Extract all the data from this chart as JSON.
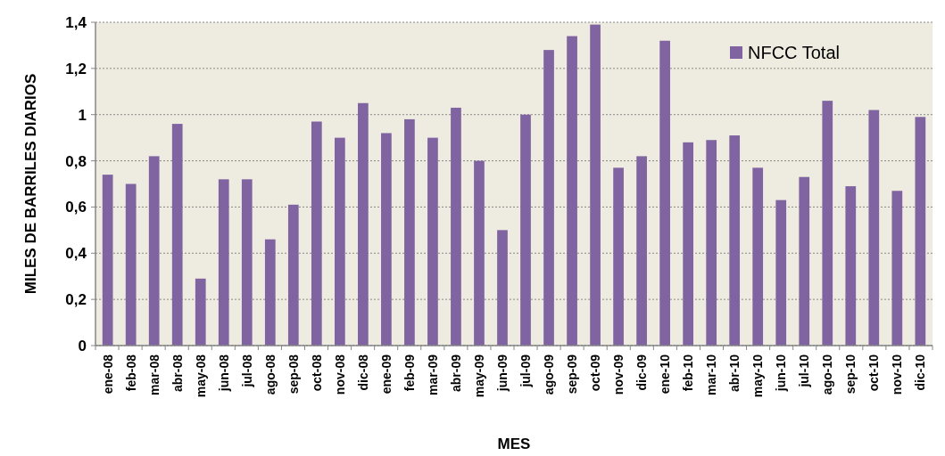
{
  "chart_data": {
    "type": "bar",
    "xlabel": "MES",
    "ylabel": "MILES DE BARRILES DIARIOS",
    "categories": [
      "ene-08",
      "feb-08",
      "mar-08",
      "abr-08",
      "may-08",
      "jun-08",
      "jul-08",
      "ago-08",
      "sep-08",
      "oct-08",
      "nov-08",
      "dic-08",
      "ene-09",
      "feb-09",
      "mar-09",
      "abr-09",
      "may-09",
      "jun-09",
      "jul-09",
      "ago-09",
      "sep-09",
      "oct-09",
      "nov-09",
      "dic-09",
      "ene-10",
      "feb-10",
      "mar-10",
      "abr-10",
      "may-10",
      "jun-10",
      "jul-10",
      "ago-10",
      "sep-10",
      "oct-10",
      "nov-10",
      "dic-10"
    ],
    "series": [
      {
        "name": "NFCC Total",
        "color": "#8064a2",
        "values": [
          0.74,
          0.7,
          0.82,
          0.96,
          0.29,
          0.72,
          0.72,
          0.46,
          0.61,
          0.97,
          0.9,
          1.05,
          0.92,
          0.98,
          0.9,
          1.03,
          0.8,
          0.5,
          1.0,
          1.28,
          1.34,
          1.39,
          0.77,
          0.82,
          1.32,
          0.88,
          0.89,
          0.91,
          0.77,
          0.63,
          0.73,
          1.06,
          0.69,
          1.02,
          0.67,
          0.99
        ]
      }
    ],
    "ylim": [
      0,
      1.4
    ],
    "yticks": [
      0,
      {
        "value": 0.2,
        "label": "0,2"
      },
      {
        "value": 0.4,
        "label": "0,4"
      },
      {
        "value": 0.6,
        "label": "0,6"
      },
      {
        "value": 0.8,
        "label": "0,8"
      },
      1,
      {
        "value": 1.2,
        "label": "1,2"
      },
      {
        "value": 1.4,
        "label": "1,4"
      }
    ],
    "grid": "y",
    "legend": "top right"
  }
}
